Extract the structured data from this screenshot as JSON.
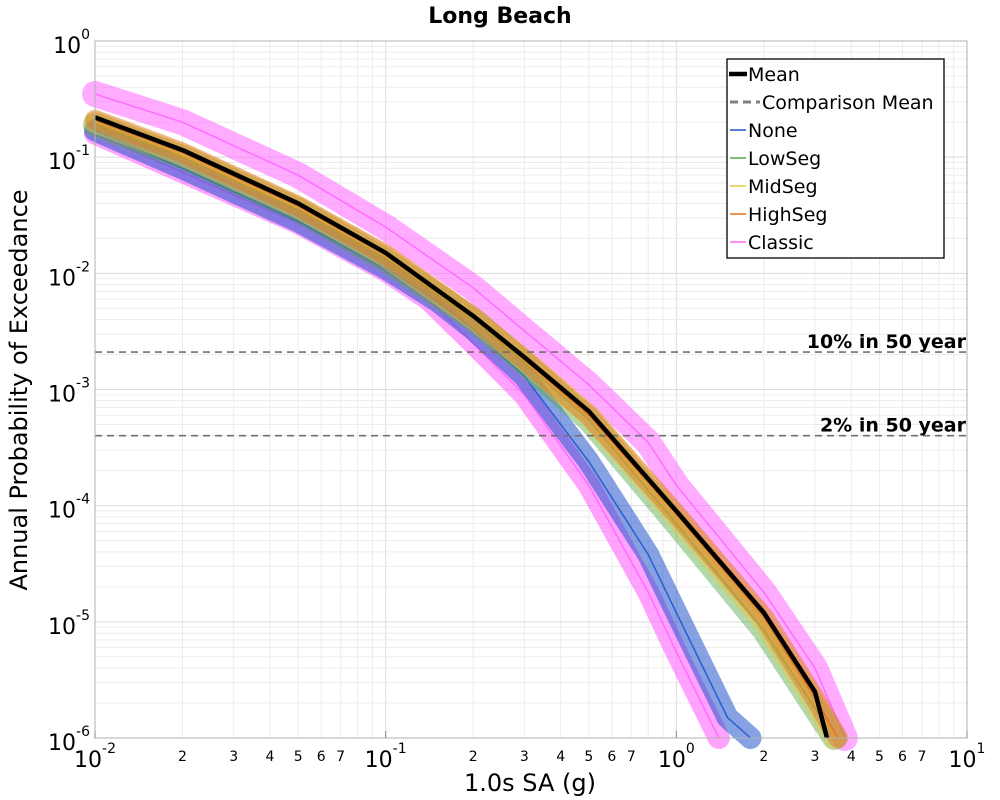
{
  "chart_data": {
    "type": "line",
    "title": "Long Beach",
    "xlabel": "1.0s SA (g)",
    "ylabel": "Annual Probability of Exceedance",
    "xscale": "log",
    "yscale": "log",
    "xlim": [
      0.01,
      10
    ],
    "ylim": [
      1e-06,
      1
    ],
    "grid": true,
    "legend_position": "top-right",
    "x_tick_labels": [
      {
        "x": 0.01,
        "base": "10",
        "exp": "-2"
      },
      {
        "x": 0.1,
        "base": "10",
        "exp": "-1"
      },
      {
        "x": 1,
        "base": "10",
        "exp": "0"
      },
      {
        "x": 10,
        "base": "10",
        "exp": "1"
      }
    ],
    "x_minor_labels": [
      "2",
      "3",
      "4",
      "5",
      "6",
      "7"
    ],
    "y_tick_labels": [
      {
        "y": 1,
        "base": "10",
        "exp": "0"
      },
      {
        "y": 0.1,
        "base": "10",
        "exp": "-1"
      },
      {
        "y": 0.01,
        "base": "10",
        "exp": "-2"
      },
      {
        "y": 0.001,
        "base": "10",
        "exp": "-3"
      },
      {
        "y": 0.0001,
        "base": "10",
        "exp": "-4"
      },
      {
        "y": 1e-05,
        "base": "10",
        "exp": "-5"
      },
      {
        "y": 1e-06,
        "base": "10",
        "exp": "-6"
      }
    ],
    "reference_lines": [
      {
        "label": "10% in 50 year",
        "y": 0.0021
      },
      {
        "label": "2% in 50 year",
        "y": 0.0004
      }
    ],
    "series": [
      {
        "name": "Mean",
        "color": "#000000",
        "style": "solid-thick",
        "x": [
          0.01,
          0.02,
          0.05,
          0.1,
          0.2,
          0.3,
          0.5,
          1.0,
          2.0,
          3.0,
          3.3
        ],
        "y": [
          0.22,
          0.115,
          0.04,
          0.015,
          0.0043,
          0.0019,
          0.00065,
          9e-05,
          1.2e-05,
          2.5e-06,
          1e-06
        ]
      },
      {
        "name": "Comparison Mean",
        "color": "#808080",
        "style": "dashed",
        "x": [],
        "y": []
      },
      {
        "name": "None",
        "color": "#2255cc",
        "style": "band",
        "x": [
          0.01,
          0.02,
          0.05,
          0.1,
          0.15,
          0.2,
          0.3,
          0.5,
          0.8,
          1.0,
          1.5,
          1.8
        ],
        "y": [
          0.17,
          0.08,
          0.028,
          0.011,
          0.0058,
          0.0033,
          0.0013,
          0.00024,
          3.8e-05,
          1.2e-05,
          1.5e-06,
          1e-06
        ]
      },
      {
        "name": "LowSeg",
        "color": "#55aa44",
        "style": "band",
        "x": [
          0.01,
          0.02,
          0.05,
          0.1,
          0.2,
          0.3,
          0.5,
          1.0,
          2.0,
          3.0,
          3.5
        ],
        "y": [
          0.19,
          0.1,
          0.035,
          0.013,
          0.004,
          0.0017,
          0.00055,
          7e-05,
          8.5e-06,
          1.8e-06,
          1e-06
        ]
      },
      {
        "name": "MidSeg",
        "color": "#e8c840",
        "style": "band",
        "x": [
          0.01,
          0.02,
          0.05,
          0.1,
          0.2,
          0.3,
          0.5,
          1.0,
          2.0,
          3.0,
          3.5
        ],
        "y": [
          0.2,
          0.105,
          0.037,
          0.014,
          0.0041,
          0.0018,
          0.0006,
          8e-05,
          1e-05,
          2e-06,
          1e-06
        ]
      },
      {
        "name": "HighSeg",
        "color": "#e07020",
        "style": "band",
        "x": [
          0.01,
          0.02,
          0.05,
          0.1,
          0.2,
          0.3,
          0.5,
          1.0,
          2.0,
          3.0,
          3.6
        ],
        "y": [
          0.21,
          0.11,
          0.038,
          0.0145,
          0.0042,
          0.0018,
          0.0006,
          8.5e-05,
          1.1e-05,
          2.2e-06,
          1e-06
        ]
      },
      {
        "name": "Classic",
        "color": "#ff66ff",
        "style": "band",
        "x": [
          0.01,
          0.02,
          0.05,
          0.1,
          0.2,
          0.3,
          0.5,
          0.8,
          1.0,
          2.0,
          3.0,
          3.8
        ],
        "y": [
          0.35,
          0.2,
          0.07,
          0.025,
          0.0075,
          0.0032,
          0.0011,
          0.00035,
          0.00015,
          1.8e-05,
          4e-06,
          1e-06
        ]
      },
      {
        "name": "",
        "color": "#ff66ff",
        "style": "band-lower",
        "x": [
          0.01,
          0.05,
          0.1,
          0.14,
          0.2,
          0.3,
          0.5,
          0.8,
          1.0,
          1.4
        ],
        "y": [
          0.16,
          0.027,
          0.0105,
          0.006,
          0.0025,
          0.0009,
          0.00015,
          1.8e-05,
          5.5e-06,
          1e-06
        ]
      }
    ]
  }
}
